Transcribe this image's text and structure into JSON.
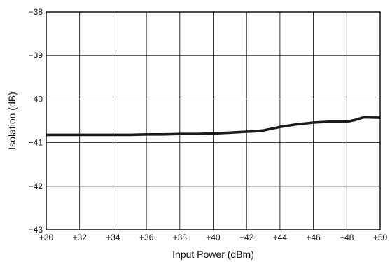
{
  "chart_data": {
    "type": "line",
    "title": "",
    "xlabel": "Input Power (dBm)",
    "ylabel": "Isolation (dB)",
    "xlim": [
      30,
      50
    ],
    "ylim": [
      -43,
      -38
    ],
    "xticks": [
      30,
      32,
      34,
      36,
      38,
      40,
      42,
      44,
      46,
      48,
      50
    ],
    "xtick_labels": [
      "+30",
      "+32",
      "+34",
      "+36",
      "+38",
      "+40",
      "+42",
      "+44",
      "+46",
      "+48",
      "+50"
    ],
    "yticks": [
      -38,
      -39,
      -40,
      -41,
      -42,
      -43
    ],
    "ytick_labels": [
      "−38",
      "−39",
      "−40",
      "−41",
      "−42",
      "−43"
    ],
    "grid": true,
    "legend": "none",
    "series": [
      {
        "color": "#1a1a1a",
        "x": [
          30,
          31,
          32,
          33,
          34,
          35,
          36,
          37,
          38,
          39,
          40,
          41,
          42,
          42.5,
          43,
          43.5,
          44,
          45,
          46,
          47,
          48,
          48.5,
          49,
          50
        ],
        "y": [
          -40.82,
          -40.82,
          -40.82,
          -40.82,
          -40.82,
          -40.82,
          -40.81,
          -40.81,
          -40.8,
          -40.8,
          -40.79,
          -40.77,
          -40.75,
          -40.74,
          -40.72,
          -40.68,
          -40.64,
          -40.58,
          -40.54,
          -40.52,
          -40.52,
          -40.48,
          -40.42,
          -40.43
        ]
      }
    ]
  }
}
